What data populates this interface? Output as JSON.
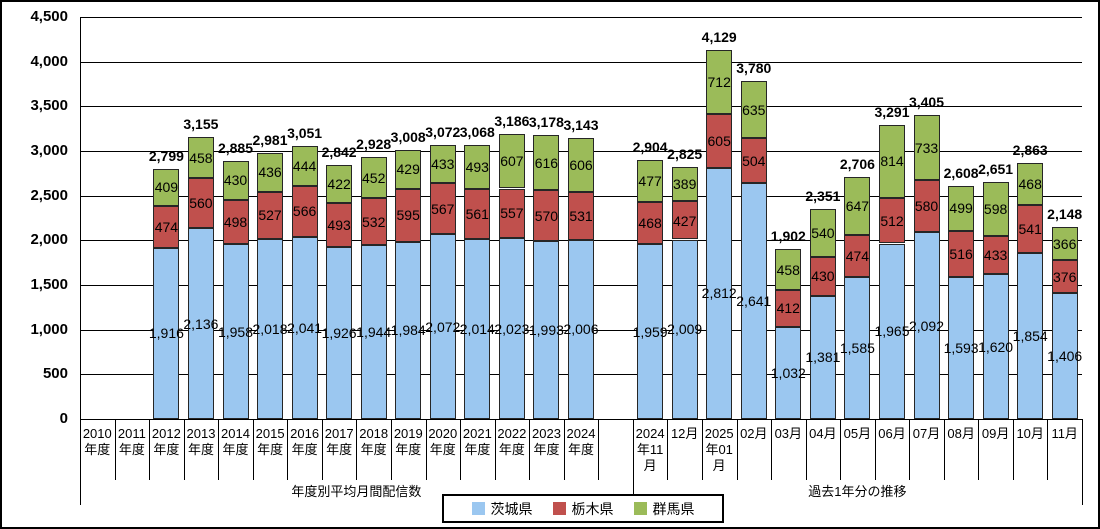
{
  "chart_data": {
    "type": "bar",
    "stacked": true,
    "title": "",
    "ylim": [
      0,
      4500
    ],
    "ytick_interval": 500,
    "ytick_labels": [
      "0",
      "500",
      "1,000",
      "1,500",
      "2,000",
      "2,500",
      "3,000",
      "3,500",
      "4,000",
      "4,500"
    ],
    "grid": true,
    "legend_position": "bottom",
    "series": [
      {
        "key": "ibaraki",
        "name": "茨城県",
        "color": "#9BC7F0"
      },
      {
        "key": "tochigi",
        "name": "栃木県",
        "color": "#C0504D"
      },
      {
        "key": "gunma",
        "name": "群馬県",
        "color": "#9BBB59"
      }
    ],
    "groups": [
      {
        "label": "年度別平均月間配信数",
        "categories": [
          {
            "label_lines": [
              "2010",
              "年度"
            ],
            "values": null
          },
          {
            "label_lines": [
              "2011",
              "年度"
            ],
            "values": null
          },
          {
            "label_lines": [
              "2012",
              "年度"
            ],
            "values": [
              1916,
              474,
              409
            ],
            "value_labels": [
              "1,916",
              "474",
              "409"
            ],
            "total": "2,799"
          },
          {
            "label_lines": [
              "2013",
              "年度"
            ],
            "values": [
              2136,
              560,
              458
            ],
            "value_labels": [
              "2,136",
              "560",
              "458"
            ],
            "total": "3,155"
          },
          {
            "label_lines": [
              "2014",
              "年度"
            ],
            "values": [
              1958,
              498,
              430
            ],
            "value_labels": [
              "1,958",
              "498",
              "430"
            ],
            "total": "2,885"
          },
          {
            "label_lines": [
              "2015",
              "年度"
            ],
            "values": [
              2018,
              527,
              436
            ],
            "value_labels": [
              "2,018",
              "527",
              "436"
            ],
            "total": "2,981"
          },
          {
            "label_lines": [
              "2016",
              "年度"
            ],
            "values": [
              2041,
              566,
              444
            ],
            "value_labels": [
              "2,041",
              "566",
              "444"
            ],
            "total": "3,051"
          },
          {
            "label_lines": [
              "2017",
              "年度"
            ],
            "values": [
              1926,
              493,
              422
            ],
            "value_labels": [
              "1,926",
              "493",
              "422"
            ],
            "total": "2,842"
          },
          {
            "label_lines": [
              "2018",
              "年度"
            ],
            "values": [
              1944,
              532,
              452
            ],
            "value_labels": [
              "1,944",
              "532",
              "452"
            ],
            "total": "2,928"
          },
          {
            "label_lines": [
              "2019",
              "年度"
            ],
            "values": [
              1984,
              595,
              429
            ],
            "value_labels": [
              "1,984",
              "595",
              "429"
            ],
            "total": "3,008"
          },
          {
            "label_lines": [
              "2020",
              "年度"
            ],
            "values": [
              2072,
              567,
              433
            ],
            "value_labels": [
              "2,072",
              "567",
              "433"
            ],
            "total": "3,072"
          },
          {
            "label_lines": [
              "2021",
              "年度"
            ],
            "values": [
              2014,
              561,
              493
            ],
            "value_labels": [
              "2,014",
              "561",
              "493"
            ],
            "total": "3,068"
          },
          {
            "label_lines": [
              "2022",
              "年度"
            ],
            "values": [
              2023,
              557,
              607
            ],
            "value_labels": [
              "2,023",
              "557",
              "607"
            ],
            "total": "3,186"
          },
          {
            "label_lines": [
              "2023",
              "年度"
            ],
            "values": [
              1993,
              570,
              616
            ],
            "value_labels": [
              "1,993",
              "570",
              "616"
            ],
            "total": "3,178"
          },
          {
            "label_lines": [
              "2024",
              "年度"
            ],
            "values": [
              2006,
              531,
              606
            ],
            "value_labels": [
              "2,006",
              "531",
              "606"
            ],
            "total": "3,143"
          },
          {
            "label_lines": [],
            "values": null
          }
        ]
      },
      {
        "label": "過去1年分の推移",
        "categories": [
          {
            "label_lines": [
              "2024",
              "年11",
              "月"
            ],
            "values": [
              1959,
              468,
              477
            ],
            "value_labels": [
              "1,959",
              "468",
              "477"
            ],
            "total": "2,904"
          },
          {
            "label_lines": [
              "12月"
            ],
            "values": [
              2009,
              427,
              389
            ],
            "value_labels": [
              "2,009",
              "427",
              "389"
            ],
            "total": "2,825"
          },
          {
            "label_lines": [
              "2025",
              "年01",
              "月"
            ],
            "values": [
              2812,
              605,
              712
            ],
            "value_labels": [
              "2,812",
              "605",
              "712"
            ],
            "total": "4,129"
          },
          {
            "label_lines": [
              "02月"
            ],
            "values": [
              2641,
              504,
              635
            ],
            "value_labels": [
              "2,641",
              "504",
              "635"
            ],
            "total": "3,780"
          },
          {
            "label_lines": [
              "03月"
            ],
            "values": [
              1032,
              412,
              458
            ],
            "value_labels": [
              "1,032",
              "412",
              "458"
            ],
            "total": "1,902"
          },
          {
            "label_lines": [
              "04月"
            ],
            "values": [
              1381,
              430,
              540
            ],
            "value_labels": [
              "1,381",
              "430",
              "540"
            ],
            "total": "2,351"
          },
          {
            "label_lines": [
              "05月"
            ],
            "values": [
              1585,
              474,
              647
            ],
            "value_labels": [
              "1,585",
              "474",
              "647"
            ],
            "total": "2,706"
          },
          {
            "label_lines": [
              "06月"
            ],
            "values": [
              1965,
              512,
              814
            ],
            "value_labels": [
              "1,965",
              "512",
              "814"
            ],
            "total": "3,291"
          },
          {
            "label_lines": [
              "07月"
            ],
            "values": [
              2092,
              580,
              733
            ],
            "value_labels": [
              "2,092",
              "580",
              "733"
            ],
            "total": "3,405"
          },
          {
            "label_lines": [
              "08月"
            ],
            "values": [
              1593,
              516,
              499
            ],
            "value_labels": [
              "1,593",
              "516",
              "499"
            ],
            "total": "2,608"
          },
          {
            "label_lines": [
              "09月"
            ],
            "values": [
              1620,
              433,
              598
            ],
            "value_labels": [
              "1,620",
              "433",
              "598"
            ],
            "total": "2,651"
          },
          {
            "label_lines": [
              "10月"
            ],
            "values": [
              1854,
              541,
              468
            ],
            "value_labels": [
              "1,854",
              "541",
              "468"
            ],
            "total": "2,863"
          },
          {
            "label_lines": [
              "11月"
            ],
            "values": [
              1406,
              376,
              366
            ],
            "value_labels": [
              "1,406",
              "376",
              "366"
            ],
            "total": "2,148"
          }
        ]
      }
    ]
  }
}
